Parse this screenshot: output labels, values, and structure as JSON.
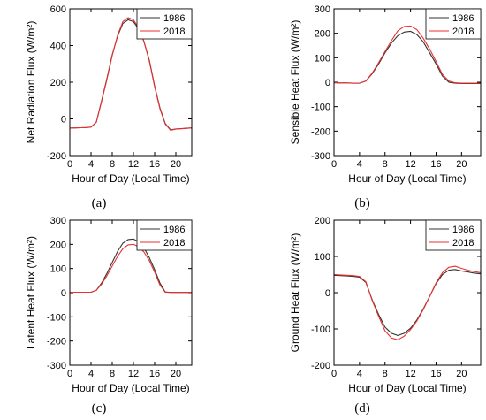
{
  "chart_data": [
    {
      "panel_label": "(a)",
      "type": "line",
      "xlabel": "Hour of Day (Local Time)",
      "ylabel": "Net Radiation Flux (W/m²)",
      "xlim": [
        0,
        23
      ],
      "ylim": [
        -200,
        600
      ],
      "xticks": [
        0,
        4,
        8,
        12,
        16,
        20
      ],
      "yticks": [
        -200,
        0,
        200,
        400,
        600
      ],
      "legend": "top-right",
      "series": [
        {
          "name": "1986",
          "color": "#333333",
          "x": [
            0,
            1,
            2,
            3,
            4,
            5,
            6,
            7,
            8,
            9,
            10,
            11,
            12,
            13,
            14,
            15,
            16,
            17,
            18,
            19,
            20,
            21,
            22,
            23
          ],
          "y": [
            -50,
            -49,
            -48,
            -47,
            -45,
            -18,
            100,
            220,
            350,
            450,
            520,
            540,
            530,
            490,
            420,
            320,
            180,
            60,
            -25,
            -60,
            -55,
            -53,
            -51,
            -49
          ]
        },
        {
          "name": "2018",
          "color": "#e8312f",
          "x": [
            0,
            1,
            2,
            3,
            4,
            5,
            6,
            7,
            8,
            9,
            10,
            11,
            12,
            13,
            14,
            15,
            16,
            17,
            18,
            19,
            20,
            21,
            22,
            23
          ],
          "y": [
            -50,
            -49,
            -48,
            -47,
            -45,
            -18,
            95,
            215,
            345,
            455,
            530,
            552,
            540,
            495,
            420,
            315,
            175,
            55,
            -28,
            -62,
            -56,
            -54,
            -52,
            -49
          ]
        }
      ]
    },
    {
      "panel_label": "(b)",
      "type": "line",
      "xlabel": "Hour of Day (Local Time)",
      "ylabel": "Sensible Heat Flux (W/m²)",
      "xlim": [
        0,
        23
      ],
      "ylim": [
        -300,
        300
      ],
      "xticks": [
        0,
        4,
        8,
        12,
        16,
        20
      ],
      "yticks": [
        -300,
        -200,
        -100,
        0,
        100,
        200,
        300
      ],
      "legend": "top-right",
      "series": [
        {
          "name": "1986",
          "color": "#333333",
          "x": [
            0,
            1,
            2,
            3,
            4,
            5,
            6,
            7,
            8,
            9,
            10,
            11,
            12,
            13,
            14,
            15,
            16,
            17,
            18,
            19,
            20,
            21,
            22,
            23
          ],
          "y": [
            -2,
            -3,
            -3,
            -4,
            -4,
            5,
            35,
            75,
            120,
            160,
            190,
            205,
            208,
            195,
            165,
            120,
            75,
            25,
            0,
            -4,
            -5,
            -5,
            -5,
            -5
          ]
        },
        {
          "name": "2018",
          "color": "#e8312f",
          "x": [
            0,
            1,
            2,
            3,
            4,
            5,
            6,
            7,
            8,
            9,
            10,
            11,
            12,
            13,
            14,
            15,
            16,
            17,
            18,
            19,
            20,
            21,
            22,
            23
          ],
          "y": [
            -2,
            -3,
            -3,
            -4,
            -4,
            5,
            38,
            80,
            125,
            170,
            210,
            228,
            230,
            215,
            180,
            135,
            85,
            32,
            5,
            -2,
            -4,
            -4,
            -4,
            -4
          ]
        }
      ]
    },
    {
      "panel_label": "(c)",
      "type": "line",
      "xlabel": "Hour of Day (Local Time)",
      "ylabel": "Latent Heat Flux (W/m²)",
      "xlim": [
        0,
        23
      ],
      "ylim": [
        -300,
        300
      ],
      "xticks": [
        0,
        4,
        8,
        12,
        16,
        20
      ],
      "yticks": [
        -300,
        -200,
        -100,
        0,
        100,
        200,
        300
      ],
      "legend": "top-right",
      "series": [
        {
          "name": "1986",
          "color": "#333333",
          "x": [
            0,
            1,
            2,
            3,
            4,
            5,
            6,
            7,
            8,
            9,
            10,
            11,
            12,
            13,
            14,
            15,
            16,
            17,
            18,
            19,
            20,
            21,
            22,
            23
          ],
          "y": [
            2,
            2,
            2,
            2,
            2,
            10,
            40,
            80,
            125,
            170,
            205,
            220,
            222,
            210,
            185,
            145,
            95,
            40,
            3,
            1,
            1,
            1,
            1,
            1
          ]
        },
        {
          "name": "2018",
          "color": "#e8312f",
          "x": [
            0,
            1,
            2,
            3,
            4,
            5,
            6,
            7,
            8,
            9,
            10,
            11,
            12,
            13,
            14,
            15,
            16,
            17,
            18,
            19,
            20,
            21,
            22,
            23
          ],
          "y": [
            2,
            2,
            2,
            2,
            2,
            10,
            35,
            70,
            110,
            150,
            182,
            198,
            200,
            190,
            168,
            132,
            85,
            32,
            2,
            1,
            1,
            1,
            1,
            1
          ]
        }
      ]
    },
    {
      "panel_label": "(d)",
      "type": "line",
      "xlabel": "Hour of Day (Local Time)",
      "ylabel": "Ground Heat Flux (W/m²)",
      "xlim": [
        0,
        23
      ],
      "ylim": [
        -200,
        200
      ],
      "xticks": [
        0,
        4,
        8,
        12,
        16,
        20
      ],
      "yticks": [
        -200,
        -100,
        0,
        100,
        200
      ],
      "legend": "top-right",
      "series": [
        {
          "name": "1986",
          "color": "#333333",
          "x": [
            0,
            1,
            2,
            3,
            4,
            5,
            6,
            7,
            8,
            9,
            10,
            11,
            12,
            13,
            14,
            15,
            16,
            17,
            18,
            19,
            20,
            21,
            22,
            23
          ],
          "y": [
            48,
            47,
            46,
            45,
            43,
            28,
            -20,
            -60,
            -95,
            -112,
            -118,
            -112,
            -98,
            -75,
            -45,
            -10,
            25,
            50,
            62,
            64,
            60,
            57,
            54,
            52
          ]
        },
        {
          "name": "2018",
          "color": "#e8312f",
          "x": [
            0,
            1,
            2,
            3,
            4,
            5,
            6,
            7,
            8,
            9,
            10,
            11,
            12,
            13,
            14,
            15,
            16,
            17,
            18,
            19,
            20,
            21,
            22,
            23
          ],
          "y": [
            50,
            49,
            48,
            47,
            45,
            30,
            -22,
            -65,
            -105,
            -125,
            -130,
            -120,
            -102,
            -78,
            -47,
            -10,
            27,
            55,
            70,
            73,
            67,
            62,
            58,
            55
          ]
        }
      ]
    }
  ]
}
